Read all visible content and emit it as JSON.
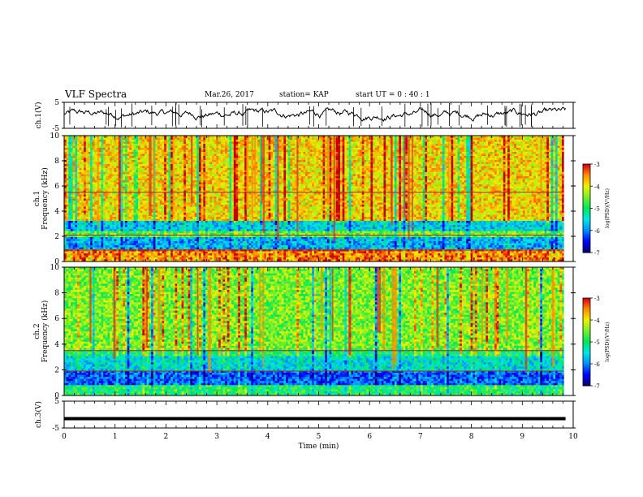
{
  "header": {
    "title": "VLF Spectra",
    "date": "Mar.26, 2017",
    "station": "station= KAP",
    "start": "start  UT  =   0 : 40 : 1"
  },
  "chart_data": [
    {
      "type": "line",
      "panel": "ch1-waveform",
      "ylabel": "ch.1(V)",
      "ylim": [
        -5,
        5
      ],
      "yticks": [
        "5",
        "-5"
      ],
      "xlim": [
        0,
        10
      ],
      "description_values": {
        "mean_level": 0.5,
        "amplitude": 2.5
      }
    },
    {
      "type": "heatmap",
      "panel": "ch1-spectrogram",
      "ylabel": "ch.1\nFrequency (kHz)",
      "ylim": [
        0,
        10
      ],
      "yticks": [
        "0",
        "2",
        "4",
        "6",
        "8",
        "10"
      ],
      "xlim": [
        0,
        10
      ],
      "colorbar": {
        "label": "log(PSD)(V²/Hz)",
        "range": [
          -7,
          -3
        ],
        "ticks": [
          "-3",
          "-4",
          "-5",
          "-6",
          "-7"
        ]
      },
      "bands_khz": [
        {
          "from": 0.0,
          "to": 0.8,
          "level": -3.5
        },
        {
          "from": 0.8,
          "to": 1.0,
          "level": -3.2
        },
        {
          "from": 1.0,
          "to": 2.0,
          "level": -5.8
        },
        {
          "from": 2.0,
          "to": 2.4,
          "level": -4.6
        },
        {
          "from": 2.4,
          "to": 3.2,
          "level": -5.6
        },
        {
          "from": 3.2,
          "to": 10.0,
          "level": -3.9
        }
      ],
      "lines_khz": [
        0.9,
        2.1,
        5.5
      ]
    },
    {
      "type": "heatmap",
      "panel": "ch2-spectrogram",
      "ylabel": "ch.2\nFrequency (kHz)",
      "ylim": [
        0,
        10
      ],
      "yticks": [
        "0",
        "2",
        "4",
        "6",
        "8",
        "10"
      ],
      "xlim": [
        0,
        10
      ],
      "colorbar": {
        "label": "log(PSD)(V²/Hz)",
        "range": [
          -7,
          -3
        ],
        "ticks": [
          "-3",
          "-4",
          "-5",
          "-6",
          "-7"
        ]
      },
      "bands_khz": [
        {
          "from": 0.0,
          "to": 0.8,
          "level": -5.0
        },
        {
          "from": 0.8,
          "to": 2.0,
          "level": -6.2
        },
        {
          "from": 2.0,
          "to": 3.0,
          "level": -5.5
        },
        {
          "from": 3.0,
          "to": 3.6,
          "level": -5.0
        },
        {
          "from": 3.6,
          "to": 10.0,
          "level": -4.5
        }
      ],
      "lines_khz": [
        1.9,
        3.5
      ]
    },
    {
      "type": "line",
      "panel": "ch3-waveform",
      "ylabel": "ch.3(V)",
      "ylim": [
        -5,
        5
      ],
      "yticks": [
        "5",
        "-5"
      ],
      "xlim": [
        0,
        10
      ],
      "constant_value": -1.5
    }
  ],
  "xaxis": {
    "label": "Time  (min)",
    "ticks": [
      "0",
      "1",
      "2",
      "3",
      "4",
      "5",
      "6",
      "7",
      "8",
      "9",
      "10"
    ]
  },
  "colors": {
    "frame": "#000000",
    "colormap": [
      "#000080",
      "#0000ff",
      "#00ffff",
      "#00ff00",
      "#ffff00",
      "#ff0000",
      "#ffffff"
    ]
  }
}
